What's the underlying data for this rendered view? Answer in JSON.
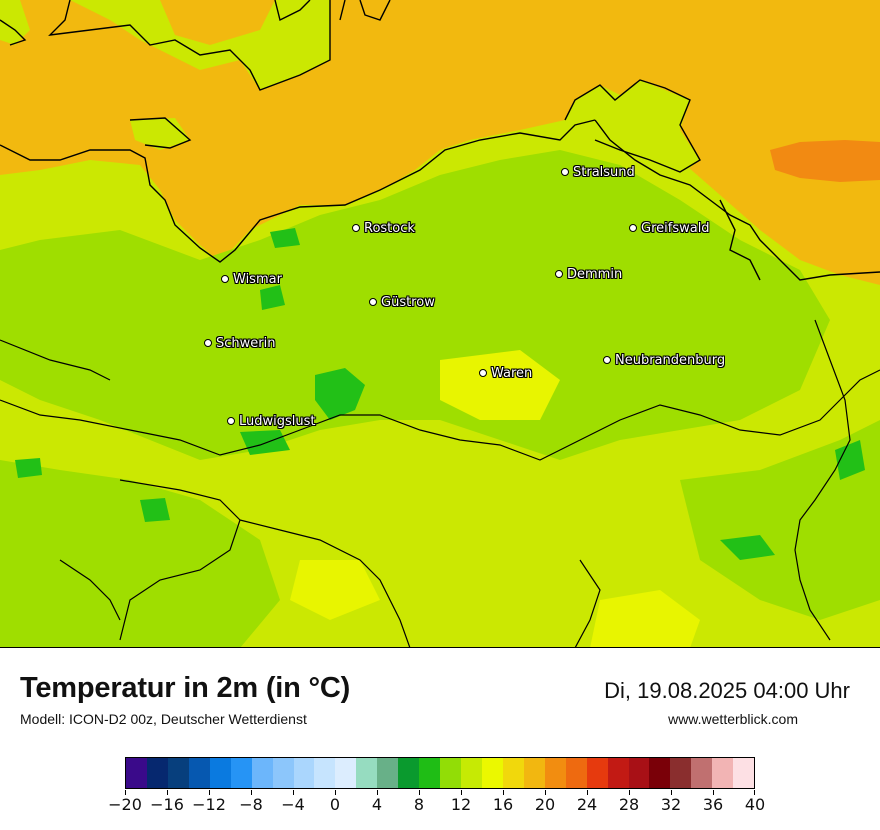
{
  "map": {
    "cities": [
      {
        "id": "stralsund",
        "name": "Stralsund"
      },
      {
        "id": "rostock",
        "name": "Rostock"
      },
      {
        "id": "greifswald",
        "name": "Greifswald"
      },
      {
        "id": "wismar",
        "name": "Wismar"
      },
      {
        "id": "demmin",
        "name": "Demmin"
      },
      {
        "id": "guestrow",
        "name": "Güstrow"
      },
      {
        "id": "schwerin",
        "name": "Schwerin"
      },
      {
        "id": "neubrandenburg",
        "name": "Neubrandenburg"
      },
      {
        "id": "waren",
        "name": "Waren"
      },
      {
        "id": "ludwigslust",
        "name": "Ludwigslust"
      }
    ],
    "colors": {
      "sea": "#f2b90f",
      "land_main": "#cbe802",
      "land_green": "#9fde00",
      "dark_green": "#22c017",
      "warm_sea": "#f28a12",
      "yellow": "#e8f500"
    }
  },
  "footer": {
    "title": "Temperatur in 2m (in °C)",
    "model": "Modell: ICON-D2 00z, Deutscher Wetterdienst",
    "datetime": "Di, 19.08.2025 04:00 Uhr",
    "website": "www.wetterblick.com"
  },
  "legend": {
    "colors": [
      "#3a0a8a",
      "#06286f",
      "#073f7d",
      "#0658b0",
      "#0a7ae0",
      "#2694f5",
      "#6cb6fb",
      "#8cc6fb",
      "#aad6fd",
      "#c6e4fe",
      "#dcedfe",
      "#96dcc0",
      "#68b088",
      "#0a9a2e",
      "#1fbd15",
      "#92dd06",
      "#c6ea04",
      "#ebf800",
      "#f1d80c",
      "#f2b710",
      "#f28d10",
      "#ee6a10",
      "#e63a0e",
      "#c21a14",
      "#a81016",
      "#7a0008",
      "#8a2e2e",
      "#c07070",
      "#f2b4b4",
      "#fde0e4"
    ],
    "ticks": [
      "−20",
      "−16",
      "−12",
      "−8",
      "−4",
      "0",
      "4",
      "8",
      "12",
      "16",
      "20",
      "24",
      "28",
      "32",
      "36",
      "40"
    ]
  }
}
